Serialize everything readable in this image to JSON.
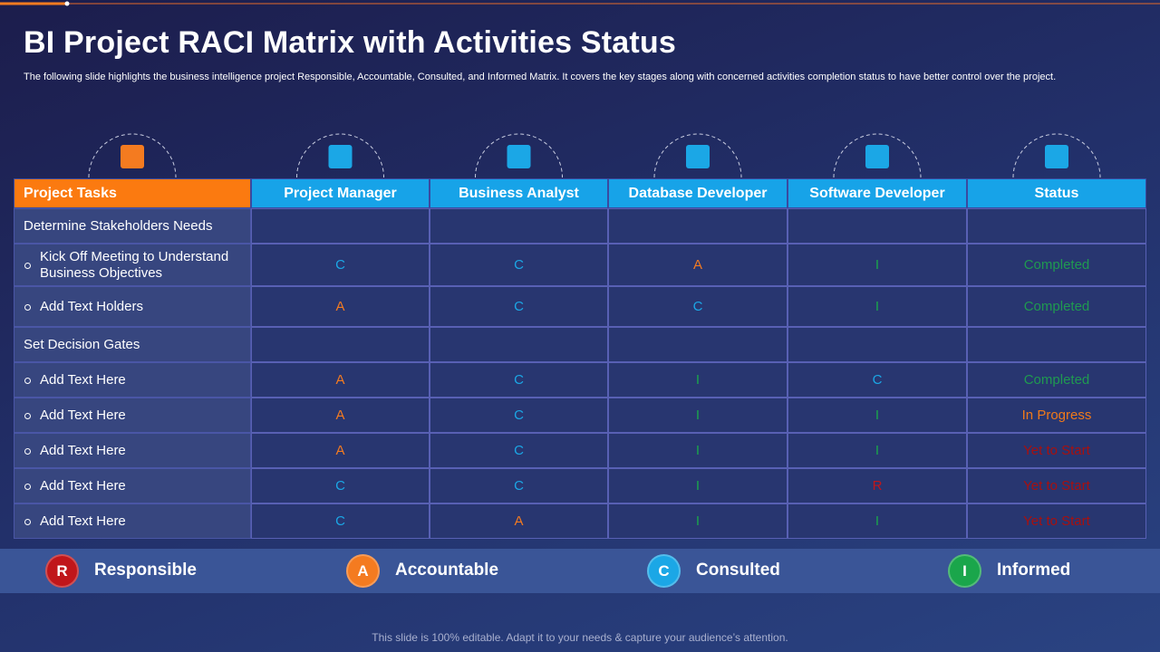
{
  "title": "BI Project RACI Matrix with Activities Status",
  "subtitle": "The following slide highlights the business intelligence project Responsible, Accountable, Consulted, and Informed Matrix. It covers the key stages along with concerned activities completion status to have better control over the project.",
  "table": {
    "headers": [
      "Project Tasks",
      "Project Manager",
      "Business Analyst",
      "Database Developer",
      "Software Developer",
      "Status"
    ],
    "rows": [
      {
        "task": "Determine Stakeholders Needs"
      },
      {
        "task": "Kick Off Meeting to Understand Business Objectives",
        "cells": [
          "C",
          "C",
          "A",
          "I"
        ],
        "status": "Completed",
        "status_color": "#1f9a50"
      },
      {
        "task": "Add Text Holders",
        "cells": [
          "A",
          "C",
          "C",
          "I"
        ],
        "status": "Completed",
        "status_color": "#1f9a50"
      },
      {
        "task": "Set Decision Gates"
      },
      {
        "task": "Add Text Here",
        "cells": [
          "A",
          "C",
          "I",
          "C"
        ],
        "status": "Completed",
        "status_color": "#1f9a50"
      },
      {
        "task": "Add Text Here",
        "cells": [
          "A",
          "C",
          "I",
          "I"
        ],
        "status": "In Progress",
        "status_color": "#f07a1a"
      },
      {
        "task": "Add Text Here",
        "cells": [
          "A",
          "C",
          "I",
          "I"
        ],
        "status": "Yet to Start",
        "status_color": "#a8100f"
      },
      {
        "task": "Add Text Here",
        "cells": [
          "C",
          "C",
          "I",
          "R"
        ],
        "status": "Yet to Start",
        "status_color": "#a8100f"
      },
      {
        "task": "Add Text Here",
        "cells": [
          "C",
          "A",
          "I",
          "I"
        ],
        "status": "Yet to Start",
        "status_color": "#a8100f"
      }
    ]
  },
  "legend": [
    {
      "letter": "R",
      "label": "Responsible",
      "color": "#c0161a"
    },
    {
      "letter": "A",
      "label": "Accountable",
      "color": "#f47b20"
    },
    {
      "letter": "C",
      "label": "Consulted",
      "color": "#1ba7e6"
    },
    {
      "letter": "I",
      "label": "Informed",
      "color": "#1aa64b"
    }
  ],
  "footer": "This slide is 100% editable. Adapt it to your needs & capture your audience’s attention."
}
